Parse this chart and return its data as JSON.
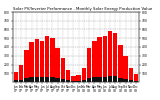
{
  "title": "Solar PV/Inverter Performance - Monthly Solar Energy Production Value",
  "months": [
    "Jan\n07",
    "Feb\n07",
    "Mar\n07",
    "Apr\n07",
    "May\n07",
    "Jun\n07",
    "Jul\n07",
    "Aug\n07",
    "Sep\n07",
    "Oct\n07",
    "Nov\n07",
    "Dec\n07",
    "Jan\n08",
    "Feb\n08",
    "Mar\n08",
    "Apr\n08",
    "May\n08",
    "Jun\n08",
    "Jul\n08",
    "Aug\n08",
    "Sep\n08",
    "Oct\n08",
    "Nov\n08",
    "Dec\n08"
  ],
  "production": [
    118,
    200,
    370,
    460,
    490,
    470,
    530,
    500,
    390,
    270,
    140,
    70,
    75,
    165,
    390,
    470,
    510,
    530,
    580,
    560,
    420,
    300,
    160,
    95
  ],
  "small_vals": [
    18,
    28,
    45,
    52,
    58,
    54,
    60,
    57,
    46,
    33,
    20,
    12,
    12,
    22,
    45,
    52,
    58,
    60,
    65,
    63,
    48,
    35,
    22,
    15
  ],
  "bar_color": "#ff0000",
  "small_color": "#111111",
  "bg_color": "#ffffff",
  "grid_color": "#999999",
  "ylim": [
    0,
    800
  ],
  "yticks": [
    100,
    200,
    300,
    400,
    500,
    600,
    700,
    800
  ],
  "title_fontsize": 2.8,
  "tick_fontsize": 2.2,
  "label_fontsize": 2.2
}
